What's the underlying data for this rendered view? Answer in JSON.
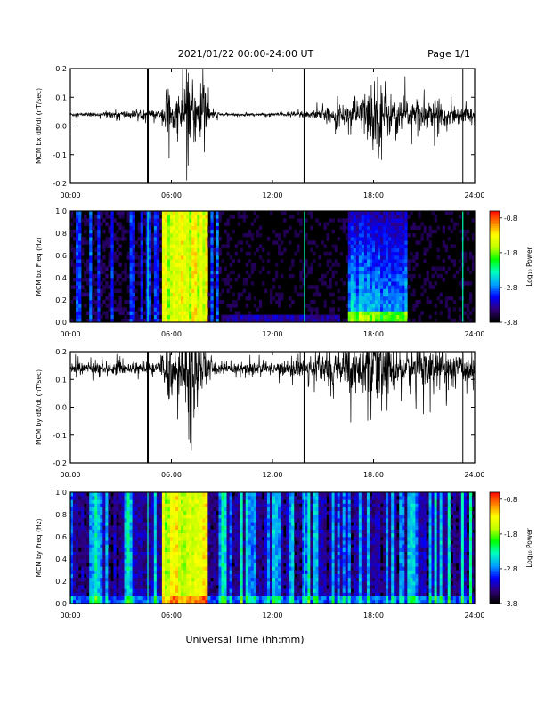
{
  "header": {
    "title": "2021/01/22  00:00-24:00 UT",
    "page": "Page 1/1"
  },
  "xlabel": "Universal Time (hh:mm)",
  "colorbar": {
    "label": "Log₁₀ Power",
    "ticks": [
      "-0.8",
      "-1.8",
      "-2.8",
      "-3.8"
    ],
    "tick_values": [
      -0.8,
      -1.8,
      -2.8,
      -3.8
    ],
    "range": [
      -3.8,
      -0.6
    ],
    "colors": [
      "#000000",
      "#30007a",
      "#0000ff",
      "#00a0ff",
      "#00ffc0",
      "#00ff00",
      "#c0ff00",
      "#ffff00",
      "#ff8000",
      "#ff0000"
    ]
  },
  "chart_data": [
    {
      "type": "line",
      "ylabel": "MCM bx dB/dt (nT/sec)",
      "xlim": [
        0,
        24
      ],
      "ylim": [
        -0.2,
        0.2
      ],
      "yticks": [
        -0.2,
        -0.1,
        0.0,
        0.1,
        0.2
      ],
      "ytick_labels": [
        "-0.2",
        "-0.1",
        "0.0",
        "0.1",
        "0.2"
      ],
      "xtick_labels": [
        "00:00",
        "06:00",
        "12:00",
        "18:00",
        "24:00"
      ],
      "baseline": 0.04,
      "spikes_at_hours": [
        4.6,
        13.9,
        23.3
      ],
      "activity_envelope": {
        "x": [
          0,
          2,
          2.1,
          5.4,
          5.6,
          5.8,
          6.0,
          6.5,
          7.0,
          7.5,
          8.0,
          8.3,
          9,
          12,
          15,
          16,
          17,
          17.5,
          18,
          18.5,
          19,
          20,
          21,
          22,
          23,
          24
        ],
        "y": [
          0.006,
          0.006,
          0.012,
          0.012,
          0.06,
          0.13,
          0.04,
          0.06,
          0.11,
          0.09,
          0.12,
          0.015,
          0.004,
          0.004,
          0.018,
          0.03,
          0.045,
          0.07,
          0.12,
          0.13,
          0.06,
          0.05,
          0.045,
          0.04,
          0.03,
          0.02
        ]
      }
    },
    {
      "type": "heatmap",
      "ylabel": "MCM bx Freq (Hz)",
      "xlim": [
        0,
        24
      ],
      "ylim": [
        0,
        1.0
      ],
      "yticks": [
        0.0,
        0.2,
        0.4,
        0.6,
        0.8,
        1.0
      ],
      "ytick_labels": [
        "0.0",
        "0.2",
        "0.4",
        "0.6",
        "0.8",
        "1.0"
      ],
      "xtick_labels": [
        "00:00",
        "06:00",
        "12:00",
        "18:00",
        "24:00"
      ],
      "zlabel": "Log₁₀ Power",
      "zlim": [
        -3.8,
        -0.6
      ],
      "intense_band_hours": [
        5.4,
        8.2
      ],
      "active_band_hours": [
        16.5,
        20.0
      ]
    },
    {
      "type": "line",
      "ylabel": "MCM by dB/dt (nT/sec)",
      "xlim": [
        0,
        24
      ],
      "ylim": [
        -0.2,
        0.2
      ],
      "yticks": [
        -0.2,
        -0.1,
        0.0,
        0.1,
        0.2
      ],
      "ytick_labels": [
        "-0.2",
        "-0.1",
        "0.0",
        "0.1",
        "0.2"
      ],
      "xtick_labels": [
        "00:00",
        "06:00",
        "12:00",
        "18:00",
        "24:00"
      ],
      "baseline": 0.14,
      "spikes_at_hours": [
        4.6,
        13.9,
        23.3
      ],
      "activity_envelope": {
        "x": [
          0,
          2,
          5.4,
          5.6,
          5.8,
          6.0,
          6.5,
          7.0,
          7.5,
          8.0,
          8.3,
          9,
          12,
          14,
          15,
          16,
          17,
          18,
          18.5,
          19,
          20,
          21,
          22,
          23,
          24
        ],
        "y": [
          0.02,
          0.02,
          0.02,
          0.08,
          0.15,
          0.05,
          0.1,
          0.18,
          0.1,
          0.08,
          0.03,
          0.02,
          0.02,
          0.03,
          0.05,
          0.07,
          0.08,
          0.1,
          0.13,
          0.08,
          0.07,
          0.07,
          0.06,
          0.05,
          0.04
        ]
      }
    },
    {
      "type": "heatmap",
      "ylabel": "MCM by Freq (Hz)",
      "xlim": [
        0,
        24
      ],
      "ylim": [
        0,
        1.0
      ],
      "yticks": [
        0.0,
        0.2,
        0.4,
        0.6,
        0.8,
        1.0
      ],
      "ytick_labels": [
        "0.0",
        "0.2",
        "0.4",
        "0.6",
        "0.8",
        "1.0"
      ],
      "xtick_labels": [
        "00:00",
        "06:00",
        "12:00",
        "18:00",
        "24:00"
      ],
      "zlabel": "Log₁₀ Power",
      "zlim": [
        -3.8,
        -0.6
      ],
      "intense_band_hours": [
        5.4,
        8.2
      ],
      "active_band_hours": [
        0,
        24
      ]
    }
  ]
}
